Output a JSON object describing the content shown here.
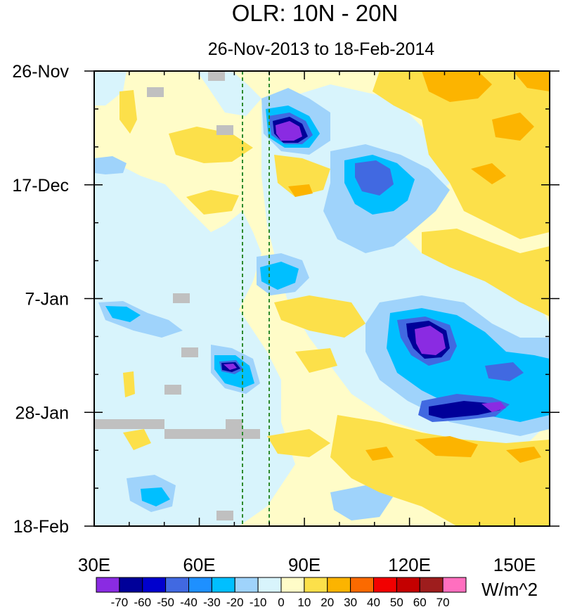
{
  "chart_data": {
    "type": "heatmap",
    "title": "OLR: 10N - 20N",
    "subtitle": "26-Nov-2013 to 18-Feb-2014",
    "x_axis": {
      "label": "",
      "range": [
        30,
        160
      ],
      "ticks": [
        {
          "value": 30,
          "label": "30E"
        },
        {
          "value": 60,
          "label": "60E"
        },
        {
          "value": 90,
          "label": "90E"
        },
        {
          "value": 120,
          "label": "120E"
        },
        {
          "value": 150,
          "label": "150E"
        }
      ],
      "minor_tick_step": 10
    },
    "y_axis": {
      "label": "",
      "range_days": [
        0,
        84
      ],
      "direction": "time increases downward",
      "ticks": [
        {
          "day": 0,
          "label": "26-Nov"
        },
        {
          "day": 21,
          "label": "17-Dec"
        },
        {
          "day": 42,
          "label": "7-Jan"
        },
        {
          "day": 63,
          "label": "28-Jan"
        },
        {
          "day": 84,
          "label": "18-Feb"
        }
      ],
      "minor_tick_step_days": 7
    },
    "reference_lines": [
      {
        "lon": 72,
        "style": "dashed",
        "color": "#2e8b2e"
      },
      {
        "lon": 80,
        "style": "dashed",
        "color": "#2e8b2e"
      }
    ],
    "colorbar": {
      "units": "W/m^2",
      "levels": [
        -70,
        -60,
        -50,
        -40,
        -30,
        -20,
        -10,
        0,
        10,
        20,
        30,
        40,
        50,
        60,
        70
      ],
      "colors": [
        "#8a2be2",
        "#000099",
        "#0000cd",
        "#4169e1",
        "#1e90ff",
        "#00bfff",
        "#9fd3fb",
        "#d8f4fc",
        "#fffcc8",
        "#fce04a",
        "#fcb400",
        "#fb6a00",
        "#f20000",
        "#c40000",
        "#9e1d1d",
        "#ff6fbf"
      ]
    },
    "missing_color": "#c0c0c0",
    "anomaly_features": [
      {
        "lon": [
          82,
          90
        ],
        "day": [
          7,
          11
        ],
        "min_value": -70
      },
      {
        "lon": [
          102,
          120
        ],
        "day": [
          16,
          25
        ],
        "min_value": -50
      },
      {
        "lon": [
          116,
          132
        ],
        "day": [
          44,
          52
        ],
        "min_value": -70
      },
      {
        "lon": [
          122,
          150
        ],
        "day": [
          57,
          66
        ],
        "min_value": -60
      },
      {
        "lon": [
          64,
          74
        ],
        "day": [
          51,
          56
        ],
        "min_value": -60
      },
      {
        "lon": [
          76,
          86
        ],
        "day": [
          35,
          41
        ],
        "min_value": -40
      },
      {
        "lon": [
          102,
          160
        ],
        "day": [
          0,
          14
        ],
        "max_value": 30
      },
      {
        "lon": [
          120,
          150
        ],
        "day": [
          68,
          78
        ],
        "max_value": 30
      }
    ]
  }
}
